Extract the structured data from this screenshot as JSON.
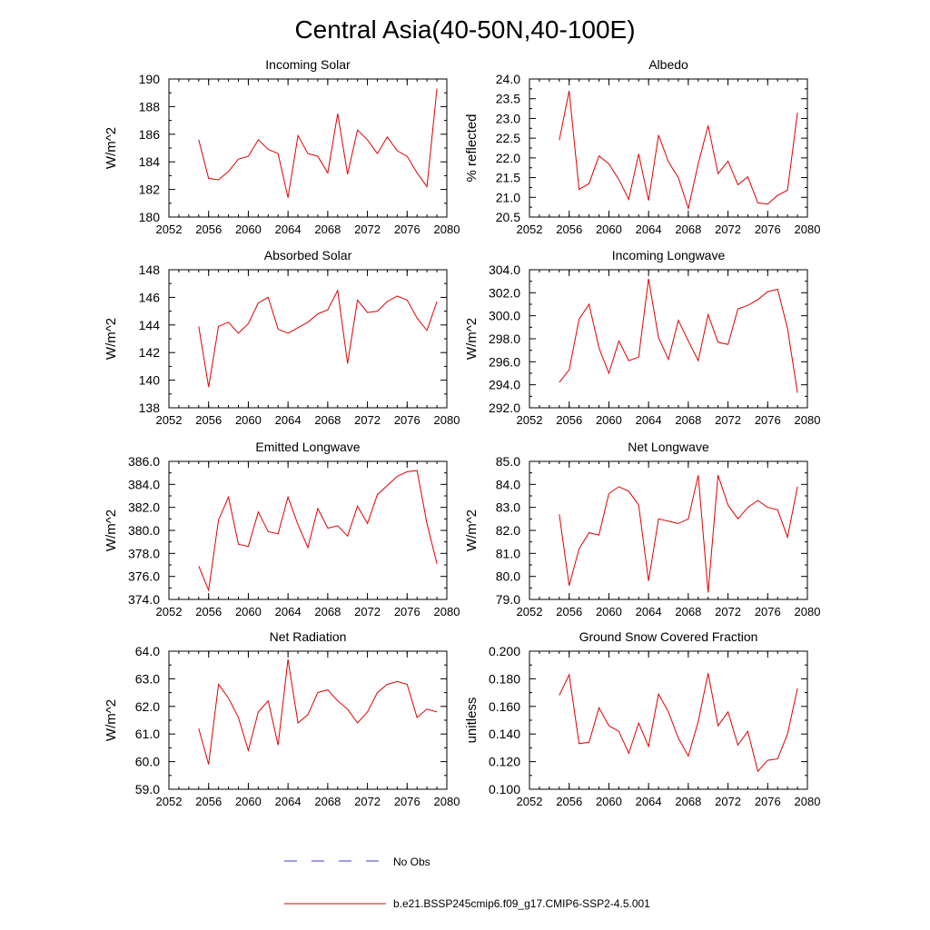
{
  "title": "Central Asia(40-50N,40-100E)",
  "legend": {
    "obs_label": "No Obs",
    "obs_color": "#3b3bd6",
    "model_label": "b.e21.BSSP245cmip6.f09_g17.CMIP6-SSP2-4.5.001",
    "model_color": "#e00000"
  },
  "chart_data": [
    {
      "type": "line",
      "title": "Incoming Solar",
      "ylabel": "W/m^2",
      "xlim": [
        2052,
        2080
      ],
      "xticks": [
        "2052",
        "2056",
        "2060",
        "2064",
        "2068",
        "2072",
        "2076",
        "2080"
      ],
      "ylim": [
        180,
        190
      ],
      "yticks": [
        "180",
        "182",
        "184",
        "186",
        "188",
        "190"
      ],
      "x": [
        2055,
        2056,
        2057,
        2058,
        2059,
        2060,
        2061,
        2062,
        2063,
        2064,
        2065,
        2066,
        2067,
        2068,
        2069,
        2070,
        2071,
        2072,
        2073,
        2074,
        2075,
        2076,
        2077,
        2078,
        2079
      ],
      "series": [
        {
          "values": [
            185.6,
            182.8,
            182.7,
            183.3,
            184.2,
            184.4,
            185.6,
            184.9,
            184.6,
            181.4,
            185.9,
            184.6,
            184.4,
            183.2,
            187.5,
            183.1,
            186.3,
            185.6,
            184.6,
            185.8,
            184.8,
            184.4,
            183.2,
            182.2,
            189.3
          ]
        }
      ]
    },
    {
      "type": "line",
      "title": "Albedo",
      "ylabel": "% reflected",
      "xlim": [
        2052,
        2080
      ],
      "xticks": [
        "2052",
        "2056",
        "2060",
        "2064",
        "2068",
        "2072",
        "2076",
        "2080"
      ],
      "ylim": [
        20.5,
        24.0
      ],
      "yticks": [
        "20.5",
        "21.0",
        "21.5",
        "22.0",
        "22.5",
        "23.0",
        "23.5",
        "24.0"
      ],
      "x": [
        2055,
        2056,
        2057,
        2058,
        2059,
        2060,
        2061,
        2062,
        2063,
        2064,
        2065,
        2066,
        2067,
        2068,
        2069,
        2070,
        2071,
        2072,
        2073,
        2074,
        2075,
        2076,
        2077,
        2078,
        2079
      ],
      "series": [
        {
          "values": [
            22.45,
            23.7,
            21.2,
            21.35,
            22.05,
            21.85,
            21.45,
            20.95,
            22.1,
            20.92,
            22.58,
            21.9,
            21.5,
            20.72,
            21.85,
            22.82,
            21.6,
            21.92,
            21.32,
            21.52,
            20.86,
            20.83,
            21.05,
            21.18,
            23.15
          ]
        }
      ]
    },
    {
      "type": "line",
      "title": "Absorbed Solar",
      "ylabel": "W/m^2",
      "xlim": [
        2052,
        2080
      ],
      "xticks": [
        "2052",
        "2056",
        "2060",
        "2064",
        "2068",
        "2072",
        "2076",
        "2080"
      ],
      "ylim": [
        138,
        148
      ],
      "yticks": [
        "138",
        "140",
        "142",
        "144",
        "146",
        "148"
      ],
      "x": [
        2055,
        2056,
        2057,
        2058,
        2059,
        2060,
        2061,
        2062,
        2063,
        2064,
        2065,
        2066,
        2067,
        2068,
        2069,
        2070,
        2071,
        2072,
        2073,
        2074,
        2075,
        2076,
        2077,
        2078,
        2079
      ],
      "series": [
        {
          "values": [
            143.9,
            139.5,
            143.9,
            144.2,
            143.4,
            144.1,
            145.6,
            146.0,
            143.7,
            143.4,
            143.8,
            144.2,
            144.8,
            145.1,
            146.5,
            141.2,
            145.8,
            144.9,
            145.0,
            145.7,
            146.1,
            145.8,
            144.5,
            143.6,
            145.7
          ]
        }
      ]
    },
    {
      "type": "line",
      "title": "Incoming Longwave",
      "ylabel": "W/m^2",
      "xlim": [
        2052,
        2080
      ],
      "xticks": [
        "2052",
        "2056",
        "2060",
        "2064",
        "2068",
        "2072",
        "2076",
        "2080"
      ],
      "ylim": [
        292.0,
        304.0
      ],
      "yticks": [
        "292.0",
        "294.0",
        "296.0",
        "298.0",
        "300.0",
        "302.0",
        "304.0"
      ],
      "x": [
        2055,
        2056,
        2057,
        2058,
        2059,
        2060,
        2061,
        2062,
        2063,
        2064,
        2065,
        2066,
        2067,
        2068,
        2069,
        2070,
        2071,
        2072,
        2073,
        2074,
        2075,
        2076,
        2077,
        2078,
        2079
      ],
      "series": [
        {
          "values": [
            294.2,
            295.3,
            299.7,
            301.0,
            297.2,
            295.0,
            297.8,
            296.1,
            296.4,
            303.2,
            298.1,
            296.2,
            299.6,
            297.8,
            296.1,
            300.1,
            297.7,
            297.5,
            300.6,
            300.9,
            301.4,
            302.1,
            302.3,
            298.9,
            293.3
          ]
        }
      ]
    },
    {
      "type": "line",
      "title": "Emitted Longwave",
      "ylabel": "W/m^2",
      "xlim": [
        2052,
        2080
      ],
      "xticks": [
        "2052",
        "2056",
        "2060",
        "2064",
        "2068",
        "2072",
        "2076",
        "2080"
      ],
      "ylim": [
        374.0,
        386.0
      ],
      "yticks": [
        "374.0",
        "376.0",
        "378.0",
        "380.0",
        "382.0",
        "384.0",
        "386.0"
      ],
      "x": [
        2055,
        2056,
        2057,
        2058,
        2059,
        2060,
        2061,
        2062,
        2063,
        2064,
        2065,
        2066,
        2067,
        2068,
        2069,
        2070,
        2071,
        2072,
        2073,
        2074,
        2075,
        2076,
        2077,
        2078,
        2079
      ],
      "series": [
        {
          "values": [
            376.9,
            374.8,
            380.9,
            382.9,
            378.8,
            378.6,
            381.6,
            379.9,
            379.7,
            382.9,
            380.5,
            378.5,
            381.9,
            380.2,
            380.4,
            379.5,
            382.1,
            380.6,
            383.1,
            383.9,
            384.7,
            385.1,
            385.2,
            380.6,
            377.1
          ]
        }
      ]
    },
    {
      "type": "line",
      "title": "Net Longwave",
      "ylabel": "W/m^2",
      "xlim": [
        2052,
        2080
      ],
      "xticks": [
        "2052",
        "2056",
        "2060",
        "2064",
        "2068",
        "2072",
        "2076",
        "2080"
      ],
      "ylim": [
        79.0,
        85.0
      ],
      "yticks": [
        "79.0",
        "80.0",
        "81.0",
        "82.0",
        "83.0",
        "84.0",
        "85.0"
      ],
      "x": [
        2055,
        2056,
        2057,
        2058,
        2059,
        2060,
        2061,
        2062,
        2063,
        2064,
        2065,
        2066,
        2067,
        2068,
        2069,
        2070,
        2071,
        2072,
        2073,
        2074,
        2075,
        2076,
        2077,
        2078,
        2079
      ],
      "series": [
        {
          "values": [
            82.7,
            79.6,
            81.2,
            81.9,
            81.8,
            83.6,
            83.9,
            83.7,
            83.1,
            79.8,
            82.5,
            82.4,
            82.3,
            82.5,
            84.4,
            79.3,
            84.4,
            83.1,
            82.5,
            83.0,
            83.3,
            83.0,
            82.9,
            81.7,
            83.9
          ]
        }
      ]
    },
    {
      "type": "line",
      "title": "Net Radiation",
      "ylabel": "W/m^2",
      "xlim": [
        2052,
        2080
      ],
      "xticks": [
        "2052",
        "2056",
        "2060",
        "2064",
        "2068",
        "2072",
        "2076",
        "2080"
      ],
      "ylim": [
        59.0,
        64.0
      ],
      "yticks": [
        "59.0",
        "60.0",
        "61.0",
        "62.0",
        "63.0",
        "64.0"
      ],
      "x": [
        2055,
        2056,
        2057,
        2058,
        2059,
        2060,
        2061,
        2062,
        2063,
        2064,
        2065,
        2066,
        2067,
        2068,
        2069,
        2070,
        2071,
        2072,
        2073,
        2074,
        2075,
        2076,
        2077,
        2078,
        2079
      ],
      "series": [
        {
          "values": [
            61.2,
            59.9,
            62.8,
            62.3,
            61.6,
            60.4,
            61.8,
            62.2,
            60.6,
            63.7,
            61.4,
            61.7,
            62.5,
            62.6,
            62.2,
            61.9,
            61.4,
            61.8,
            62.5,
            62.8,
            62.9,
            62.8,
            61.6,
            61.9,
            61.8
          ]
        }
      ]
    },
    {
      "type": "line",
      "title": "Ground Snow Covered Fraction",
      "ylabel": "unitless",
      "xlim": [
        2052,
        2080
      ],
      "xticks": [
        "2052",
        "2056",
        "2060",
        "2064",
        "2068",
        "2072",
        "2076",
        "2080"
      ],
      "ylim": [
        0.1,
        0.2
      ],
      "yticks": [
        "0.100",
        "0.120",
        "0.140",
        "0.160",
        "0.180",
        "0.200"
      ],
      "x": [
        2055,
        2056,
        2057,
        2058,
        2059,
        2060,
        2061,
        2062,
        2063,
        2064,
        2065,
        2066,
        2067,
        2068,
        2069,
        2070,
        2071,
        2072,
        2073,
        2074,
        2075,
        2076,
        2077,
        2078,
        2079
      ],
      "series": [
        {
          "values": [
            0.168,
            0.183,
            0.133,
            0.134,
            0.159,
            0.146,
            0.142,
            0.126,
            0.148,
            0.131,
            0.169,
            0.156,
            0.137,
            0.124,
            0.149,
            0.184,
            0.146,
            0.156,
            0.132,
            0.142,
            0.113,
            0.121,
            0.122,
            0.14,
            0.173
          ]
        }
      ]
    }
  ]
}
